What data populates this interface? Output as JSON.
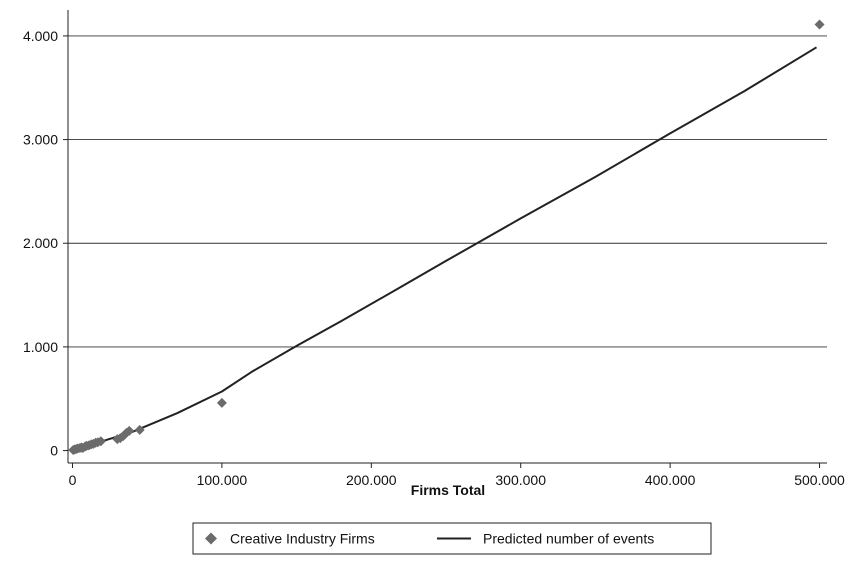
{
  "chart_data": {
    "type": "scatter",
    "title": "",
    "xlabel": "Firms Total",
    "ylabel": "",
    "xlim": [
      -3000,
      505000
    ],
    "ylim": [
      -120,
      4250
    ],
    "x_ticks": [
      0,
      100000,
      200000,
      300000,
      400000,
      500000
    ],
    "x_tick_labels": [
      "0",
      "100.000",
      "200.000",
      "300.000",
      "400.000",
      "500.000"
    ],
    "y_ticks": [
      0,
      1000,
      2000,
      3000,
      4000
    ],
    "y_tick_labels": [
      "0",
      "1.000",
      "2.000",
      "3.000",
      "4.000"
    ],
    "grid": "horizontal",
    "legend_position": "bottom",
    "series": [
      {
        "name": "Creative Industry Firms",
        "kind": "scatter",
        "marker": "diamond",
        "color": "#6b6b6b",
        "points": [
          {
            "x": 500,
            "y": 5
          },
          {
            "x": 1500,
            "y": 10
          },
          {
            "x": 2500,
            "y": 15
          },
          {
            "x": 3500,
            "y": 20
          },
          {
            "x": 5000,
            "y": 25
          },
          {
            "x": 6000,
            "y": 30
          },
          {
            "x": 7000,
            "y": 25
          },
          {
            "x": 8500,
            "y": 40
          },
          {
            "x": 9500,
            "y": 45
          },
          {
            "x": 11000,
            "y": 50
          },
          {
            "x": 12500,
            "y": 60
          },
          {
            "x": 14000,
            "y": 65
          },
          {
            "x": 15500,
            "y": 75
          },
          {
            "x": 17000,
            "y": 80
          },
          {
            "x": 19000,
            "y": 90
          },
          {
            "x": 30000,
            "y": 110
          },
          {
            "x": 32000,
            "y": 120
          },
          {
            "x": 34000,
            "y": 140
          },
          {
            "x": 36000,
            "y": 170
          },
          {
            "x": 38000,
            "y": 190
          },
          {
            "x": 45000,
            "y": 200
          },
          {
            "x": 100000,
            "y": 460
          },
          {
            "x": 500000,
            "y": 4110
          }
        ]
      },
      {
        "name": "Predicted number of events",
        "kind": "line",
        "color": "#222222",
        "points": [
          {
            "x": 0,
            "y": 0
          },
          {
            "x": 10000,
            "y": 45
          },
          {
            "x": 20000,
            "y": 90
          },
          {
            "x": 30000,
            "y": 135
          },
          {
            "x": 40000,
            "y": 180
          },
          {
            "x": 50000,
            "y": 240
          },
          {
            "x": 70000,
            "y": 360
          },
          {
            "x": 100000,
            "y": 570
          },
          {
            "x": 120000,
            "y": 760
          },
          {
            "x": 150000,
            "y": 1010
          },
          {
            "x": 180000,
            "y": 1250
          },
          {
            "x": 220000,
            "y": 1580
          },
          {
            "x": 250000,
            "y": 1830
          },
          {
            "x": 300000,
            "y": 2240
          },
          {
            "x": 350000,
            "y": 2640
          },
          {
            "x": 400000,
            "y": 3060
          },
          {
            "x": 450000,
            "y": 3470
          },
          {
            "x": 498000,
            "y": 3890
          }
        ]
      }
    ]
  }
}
